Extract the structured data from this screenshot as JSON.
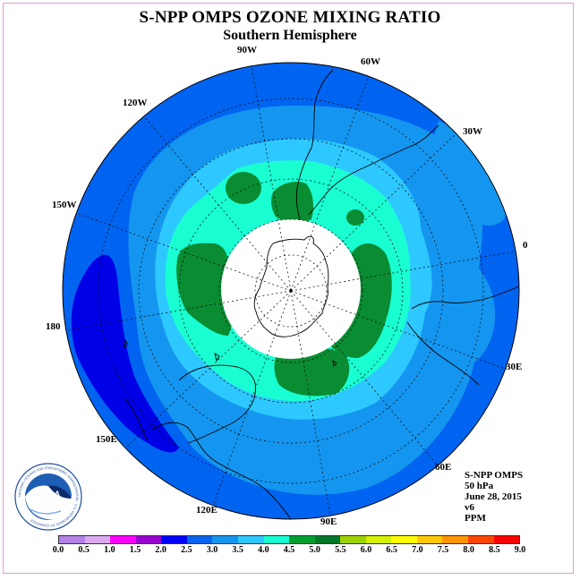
{
  "title": "S-NPP OMPS OZONE MIXING RATIO",
  "subtitle": "Southern Hemisphere",
  "longitude_labels": {
    "lon_90w": "90W",
    "lon_60w": "60W",
    "lon_120w": "120W",
    "lon_30w": "30W",
    "lon_150w": "150W",
    "lon_0": "0",
    "lon_180": "180",
    "lon_30e": "30E",
    "lon_150e": "150E",
    "lon_60e": "60E",
    "lon_120e": "120E",
    "lon_90e": "90E"
  },
  "info": {
    "instrument": "S-NPP OMPS",
    "level": "50 hPa",
    "date": "June 28, 2015",
    "version": "v6",
    "units": "PPM"
  },
  "logo": {
    "text": "NOAA",
    "ring_text": "NATIONAL OCEANIC AND ATMOSPHERIC ADMINISTRATION · U.S. DEPARTMENT OF COMMERCE"
  },
  "colorbar": {
    "ticks": [
      "0.0",
      "0.5",
      "1.0",
      "1.5",
      "2.0",
      "2.5",
      "3.0",
      "3.5",
      "4.0",
      "4.5",
      "5.0",
      "5.5",
      "6.0",
      "6.5",
      "7.0",
      "7.5",
      "8.0",
      "8.5",
      "9.0"
    ],
    "colors": [
      "#b482e6",
      "#dcaaf0",
      "#ff00ff",
      "#9b00d2",
      "#0000ff",
      "#0a64f0",
      "#1496f0",
      "#2dc8ff",
      "#19ffd2",
      "#00a032",
      "#007828",
      "#9bd200",
      "#d2f000",
      "#ffff00",
      "#ffc800",
      "#ff9600",
      "#ff4600",
      "#ff0000",
      "#8c5a32"
    ]
  },
  "map_colors": {
    "band_2_0_2_5": "#0064f0",
    "band_2_5_3_0": "#1496f0",
    "band_3_0_3_5": "#2dc8ff",
    "band_3_5_4_0": "#19ffd2",
    "band_4_0_4_5": "#0a8c32",
    "band_1_5_2_0": "#0000e6"
  }
}
